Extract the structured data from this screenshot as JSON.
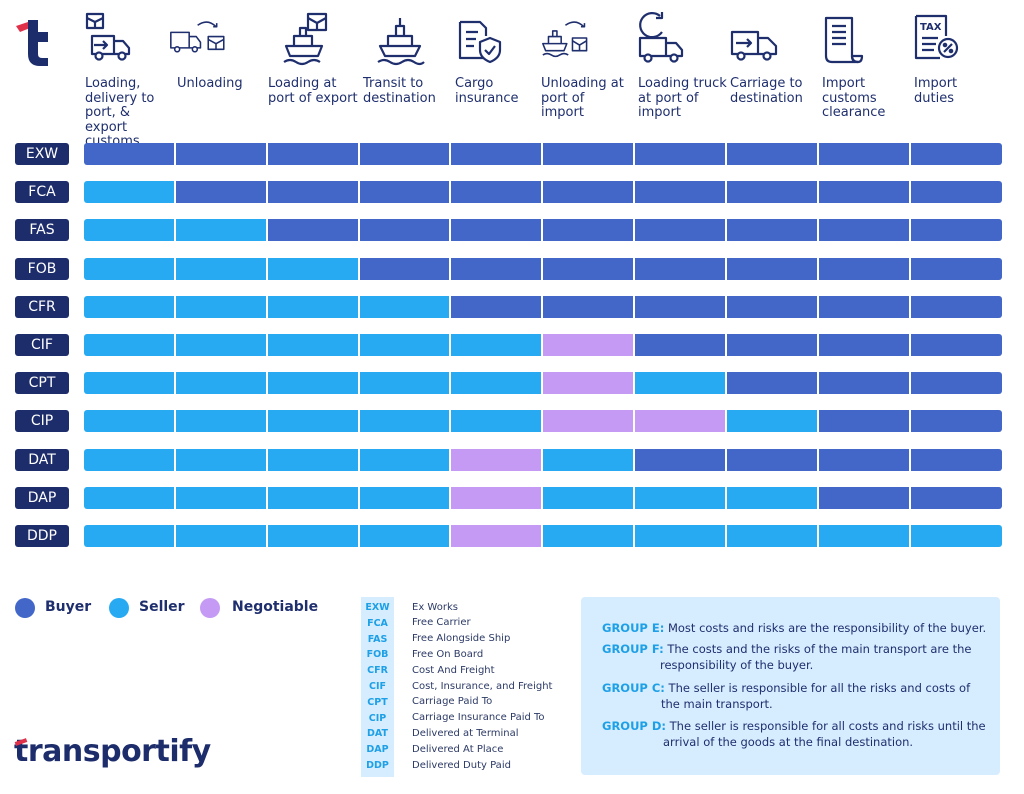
{
  "brand": {
    "name": "transportify",
    "accent": "#e0314b"
  },
  "colors": {
    "buyer": "#4366c9",
    "seller": "#27aaf2",
    "negotiable": "#c49af4",
    "badge": "#1d2d6b"
  },
  "columns": [
    {
      "label": "Loading, delivery to port, & export customs",
      "icon": "truck-with-box-icon"
    },
    {
      "label": "Unloading",
      "icon": "truck-unloading-icon"
    },
    {
      "label": "Loading at port of export",
      "icon": "ship-loading-icon"
    },
    {
      "label": "Transit to destination",
      "icon": "ship-icon"
    },
    {
      "label": "Cargo insurance",
      "icon": "document-shield-icon"
    },
    {
      "label": "Unloading at port of import",
      "icon": "ship-unloading-icon"
    },
    {
      "label": "Loading truck at port of import",
      "icon": "truck-reload-icon"
    },
    {
      "label": "Carriage to destination",
      "icon": "truck-arrow-icon"
    },
    {
      "label": "Import customs clearance",
      "icon": "scroll-document-icon"
    },
    {
      "label": "Import duties",
      "icon": "tax-document-icon"
    }
  ],
  "rows": [
    {
      "code": "EXW",
      "cells": [
        "B",
        "B",
        "B",
        "B",
        "B",
        "B",
        "B",
        "B",
        "B",
        "B"
      ]
    },
    {
      "code": "FCA",
      "cells": [
        "S",
        "B",
        "B",
        "B",
        "B",
        "B",
        "B",
        "B",
        "B",
        "B"
      ]
    },
    {
      "code": "FAS",
      "cells": [
        "S",
        "S",
        "B",
        "B",
        "B",
        "B",
        "B",
        "B",
        "B",
        "B"
      ]
    },
    {
      "code": "FOB",
      "cells": [
        "S",
        "S",
        "S",
        "B",
        "B",
        "B",
        "B",
        "B",
        "B",
        "B"
      ]
    },
    {
      "code": "CFR",
      "cells": [
        "S",
        "S",
        "S",
        "S",
        "B",
        "B",
        "B",
        "B",
        "B",
        "B"
      ]
    },
    {
      "code": "CIF",
      "cells": [
        "S",
        "S",
        "S",
        "S",
        "S",
        "N",
        "B",
        "B",
        "B",
        "B"
      ]
    },
    {
      "code": "CPT",
      "cells": [
        "S",
        "S",
        "S",
        "S",
        "S",
        "N",
        "S",
        "B",
        "B",
        "B"
      ]
    },
    {
      "code": "CIP",
      "cells": [
        "S",
        "S",
        "S",
        "S",
        "S",
        "N",
        "N",
        "S",
        "B",
        "B"
      ]
    },
    {
      "code": "DAT",
      "cells": [
        "S",
        "S",
        "S",
        "S",
        "N",
        "S",
        "B",
        "B",
        "B",
        "B"
      ]
    },
    {
      "code": "DAP",
      "cells": [
        "S",
        "S",
        "S",
        "S",
        "N",
        "S",
        "S",
        "S",
        "B",
        "B"
      ]
    },
    {
      "code": "DDP",
      "cells": [
        "S",
        "S",
        "S",
        "S",
        "N",
        "S",
        "S",
        "S",
        "S",
        "S"
      ]
    }
  ],
  "legend": {
    "buyer": "Buyer",
    "seller": "Seller",
    "negotiable": "Negotiable"
  },
  "abbreviations": [
    {
      "code": "EXW",
      "name": "Ex Works"
    },
    {
      "code": "FCA",
      "name": "Free Carrier"
    },
    {
      "code": "FAS",
      "name": "Free Alongside Ship"
    },
    {
      "code": "FOB",
      "name": "Free On Board"
    },
    {
      "code": "CFR",
      "name": "Cost And Freight"
    },
    {
      "code": "CIF",
      "name": "Cost, Insurance, and Freight"
    },
    {
      "code": "CPT",
      "name": "Carriage Paid To"
    },
    {
      "code": "CIP",
      "name": "Carriage Insurance Paid To"
    },
    {
      "code": "DAT",
      "name": "Delivered at Terminal"
    },
    {
      "code": "DAP",
      "name": "Delivered At Place"
    },
    {
      "code": "DDP",
      "name": "Delivered Duty Paid"
    }
  ],
  "groups": [
    {
      "key": "GROUP E:",
      "text": "Most costs and risks are the responsibility of the buyer."
    },
    {
      "key": "GROUP F:",
      "text": "The costs and the risks of the main transport are the responsibility of the buyer."
    },
    {
      "key": "GROUP C:",
      "text": "The seller is responsible for all the risks and costs of the main transport."
    },
    {
      "key": "GROUP D:",
      "text": "The seller is responsible for all costs and risks until the arrival of the goods at the final destination."
    }
  ]
}
